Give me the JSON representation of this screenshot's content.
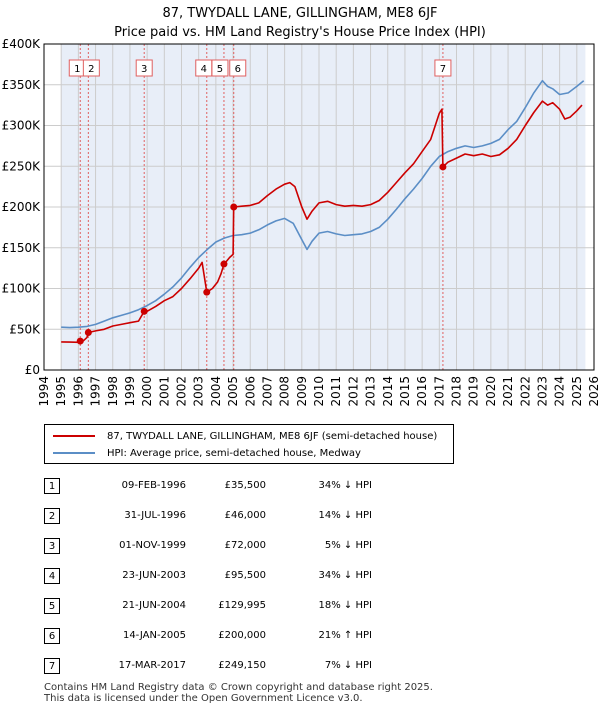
{
  "chart_data": {
    "type": "line",
    "title": "87, TWYDALL LANE, GILLINGHAM, ME8 6JF",
    "subtitle": "Price paid vs. HM Land Registry's House Price Index (HPI)",
    "ylim": [
      0,
      400000
    ],
    "xlim": [
      1994,
      2026
    ],
    "y_ticks": [
      0,
      50000,
      100000,
      150000,
      200000,
      250000,
      300000,
      350000,
      400000
    ],
    "y_tick_labels": [
      "£0",
      "£50K",
      "£100K",
      "£150K",
      "£200K",
      "£250K",
      "£300K",
      "£350K",
      "£400K"
    ],
    "x_ticks": [
      1994,
      1995,
      1996,
      1997,
      1998,
      1999,
      2000,
      2001,
      2002,
      2003,
      2004,
      2005,
      2006,
      2007,
      2008,
      2009,
      2010,
      2011,
      2012,
      2013,
      2014,
      2015,
      2016,
      2017,
      2018,
      2019,
      2020,
      2021,
      2022,
      2023,
      2024,
      2025,
      2026
    ],
    "x_tick_labels": [
      "1994",
      "1995",
      "1996",
      "1997",
      "1998",
      "1999",
      "2000",
      "2001",
      "2002",
      "2003",
      "2004",
      "2005",
      "2006",
      "2007",
      "2008",
      "2009",
      "2010",
      "2011",
      "2012",
      "2013",
      "2014",
      "2015",
      "2016",
      "2017",
      "2018",
      "2019",
      "2020",
      "2021",
      "2022",
      "2023",
      "2024",
      "2025",
      "2026"
    ],
    "data_range": [
      1995.0,
      2025.5
    ],
    "grid": true,
    "colors": {
      "property": "#cc0000",
      "hpi": "#5b8ec6",
      "band": "#e8eef8",
      "vline": "#e06060",
      "grid": "#cccccc"
    },
    "series": [
      {
        "name": "87, TWYDALL LANE, GILLINGHAM, ME8 6JF (semi-detached house)",
        "color": "#cc0000",
        "points": [
          [
            1995.0,
            34500
          ],
          [
            1995.5,
            34200
          ],
          [
            1996.0,
            34000
          ],
          [
            1996.11,
            35500
          ],
          [
            1996.3,
            36000
          ],
          [
            1996.5,
            40000
          ],
          [
            1996.58,
            46000
          ],
          [
            1997.0,
            48000
          ],
          [
            1997.5,
            50000
          ],
          [
            1998.0,
            54000
          ],
          [
            1998.5,
            56000
          ],
          [
            1999.0,
            58000
          ],
          [
            1999.5,
            60000
          ],
          [
            1999.83,
            72000
          ],
          [
            2000.0,
            72000
          ],
          [
            2000.5,
            78000
          ],
          [
            2001.0,
            85000
          ],
          [
            2001.5,
            90000
          ],
          [
            2002.0,
            100000
          ],
          [
            2002.5,
            112000
          ],
          [
            2003.0,
            125000
          ],
          [
            2003.2,
            132000
          ],
          [
            2003.47,
            95500
          ],
          [
            2003.8,
            100000
          ],
          [
            2004.1,
            108000
          ],
          [
            2004.3,
            118000
          ],
          [
            2004.47,
            129995
          ],
          [
            2004.6,
            133000
          ],
          [
            2004.8,
            138000
          ],
          [
            2005.0,
            142000
          ],
          [
            2005.04,
            200000
          ],
          [
            2005.5,
            201000
          ],
          [
            2006.0,
            202000
          ],
          [
            2006.5,
            205000
          ],
          [
            2007.0,
            214000
          ],
          [
            2007.5,
            222000
          ],
          [
            2008.0,
            228000
          ],
          [
            2008.3,
            230000
          ],
          [
            2008.6,
            225000
          ],
          [
            2009.0,
            200000
          ],
          [
            2009.3,
            185000
          ],
          [
            2009.6,
            195000
          ],
          [
            2010.0,
            205000
          ],
          [
            2010.5,
            207000
          ],
          [
            2011.0,
            203000
          ],
          [
            2011.5,
            201000
          ],
          [
            2012.0,
            202000
          ],
          [
            2012.5,
            201000
          ],
          [
            2013.0,
            203000
          ],
          [
            2013.5,
            208000
          ],
          [
            2014.0,
            218000
          ],
          [
            2014.5,
            230000
          ],
          [
            2015.0,
            242000
          ],
          [
            2015.5,
            253000
          ],
          [
            2016.0,
            268000
          ],
          [
            2016.5,
            283000
          ],
          [
            2017.0,
            315000
          ],
          [
            2017.15,
            320000
          ],
          [
            2017.21,
            249150
          ],
          [
            2017.5,
            255000
          ],
          [
            2018.0,
            260000
          ],
          [
            2018.5,
            265000
          ],
          [
            2019.0,
            263000
          ],
          [
            2019.5,
            265000
          ],
          [
            2020.0,
            262000
          ],
          [
            2020.5,
            264000
          ],
          [
            2021.0,
            272000
          ],
          [
            2021.5,
            283000
          ],
          [
            2022.0,
            300000
          ],
          [
            2022.5,
            316000
          ],
          [
            2023.0,
            330000
          ],
          [
            2023.3,
            325000
          ],
          [
            2023.6,
            328000
          ],
          [
            2024.0,
            320000
          ],
          [
            2024.3,
            308000
          ],
          [
            2024.6,
            310000
          ],
          [
            2025.0,
            318000
          ],
          [
            2025.3,
            325000
          ]
        ]
      },
      {
        "name": "HPI: Average price, semi-detached house, Medway",
        "color": "#5b8ec6",
        "points": [
          [
            1995.0,
            52500
          ],
          [
            1995.5,
            52000
          ],
          [
            1996.0,
            52500
          ],
          [
            1996.5,
            53500
          ],
          [
            1997.0,
            56000
          ],
          [
            1997.5,
            60000
          ],
          [
            1998.0,
            64000
          ],
          [
            1998.5,
            67000
          ],
          [
            1999.0,
            70000
          ],
          [
            1999.5,
            74000
          ],
          [
            2000.0,
            79000
          ],
          [
            2000.5,
            85000
          ],
          [
            2001.0,
            93000
          ],
          [
            2001.5,
            102000
          ],
          [
            2002.0,
            113000
          ],
          [
            2002.5,
            126000
          ],
          [
            2003.0,
            138000
          ],
          [
            2003.5,
            148000
          ],
          [
            2004.0,
            157000
          ],
          [
            2004.5,
            162000
          ],
          [
            2005.0,
            165000
          ],
          [
            2005.5,
            166000
          ],
          [
            2006.0,
            168000
          ],
          [
            2006.5,
            172000
          ],
          [
            2007.0,
            178000
          ],
          [
            2007.5,
            183000
          ],
          [
            2008.0,
            186000
          ],
          [
            2008.5,
            180000
          ],
          [
            2009.0,
            160000
          ],
          [
            2009.3,
            148000
          ],
          [
            2009.6,
            158000
          ],
          [
            2010.0,
            168000
          ],
          [
            2010.5,
            170000
          ],
          [
            2011.0,
            167000
          ],
          [
            2011.5,
            165000
          ],
          [
            2012.0,
            166000
          ],
          [
            2012.5,
            167000
          ],
          [
            2013.0,
            170000
          ],
          [
            2013.5,
            175000
          ],
          [
            2014.0,
            185000
          ],
          [
            2014.5,
            197000
          ],
          [
            2015.0,
            210000
          ],
          [
            2015.5,
            222000
          ],
          [
            2016.0,
            235000
          ],
          [
            2016.5,
            250000
          ],
          [
            2017.0,
            262000
          ],
          [
            2017.5,
            268000
          ],
          [
            2018.0,
            272000
          ],
          [
            2018.5,
            275000
          ],
          [
            2019.0,
            273000
          ],
          [
            2019.5,
            275000
          ],
          [
            2020.0,
            278000
          ],
          [
            2020.5,
            283000
          ],
          [
            2021.0,
            295000
          ],
          [
            2021.5,
            305000
          ],
          [
            2022.0,
            322000
          ],
          [
            2022.5,
            340000
          ],
          [
            2023.0,
            355000
          ],
          [
            2023.3,
            348000
          ],
          [
            2023.6,
            345000
          ],
          [
            2024.0,
            338000
          ],
          [
            2024.5,
            340000
          ],
          [
            2025.0,
            348000
          ],
          [
            2025.4,
            355000
          ]
        ]
      }
    ],
    "sales": [
      {
        "num": "1",
        "date": "09-FEB-1996",
        "x": 1996.11,
        "price": 35500,
        "price_label": "£35,500",
        "hpi_label": "34% ↓ HPI"
      },
      {
        "num": "2",
        "date": "31-JUL-1996",
        "x": 1996.58,
        "price": 46000,
        "price_label": "£46,000",
        "hpi_label": "14% ↓ HPI"
      },
      {
        "num": "3",
        "date": "01-NOV-1999",
        "x": 1999.83,
        "price": 72000,
        "price_label": "£72,000",
        "hpi_label": "5% ↓ HPI"
      },
      {
        "num": "4",
        "date": "23-JUN-2003",
        "x": 2003.47,
        "price": 95500,
        "price_label": "£95,500",
        "hpi_label": "34% ↓ HPI"
      },
      {
        "num": "5",
        "date": "21-JUN-2004",
        "x": 2004.47,
        "price": 129995,
        "price_label": "£129,995",
        "hpi_label": "18% ↓ HPI"
      },
      {
        "num": "6",
        "date": "14-JAN-2005",
        "x": 2005.04,
        "price": 200000,
        "price_label": "£200,000",
        "hpi_label": "21% ↑ HPI"
      },
      {
        "num": "7",
        "date": "17-MAR-2017",
        "x": 2017.21,
        "price": 249150,
        "price_label": "£249,150",
        "hpi_label": "7% ↓ HPI"
      }
    ],
    "legend": {
      "property_label": "87, TWYDALL LANE, GILLINGHAM, ME8 6JF (semi-detached house)",
      "hpi_label": "HPI: Average price, semi-detached house, Medway",
      "position": "below-chart"
    }
  },
  "footer": {
    "line1": "Contains HM Land Registry data © Crown copyright and database right 2025.",
    "line2": "This data is licensed under the Open Government Licence v3.0."
  }
}
